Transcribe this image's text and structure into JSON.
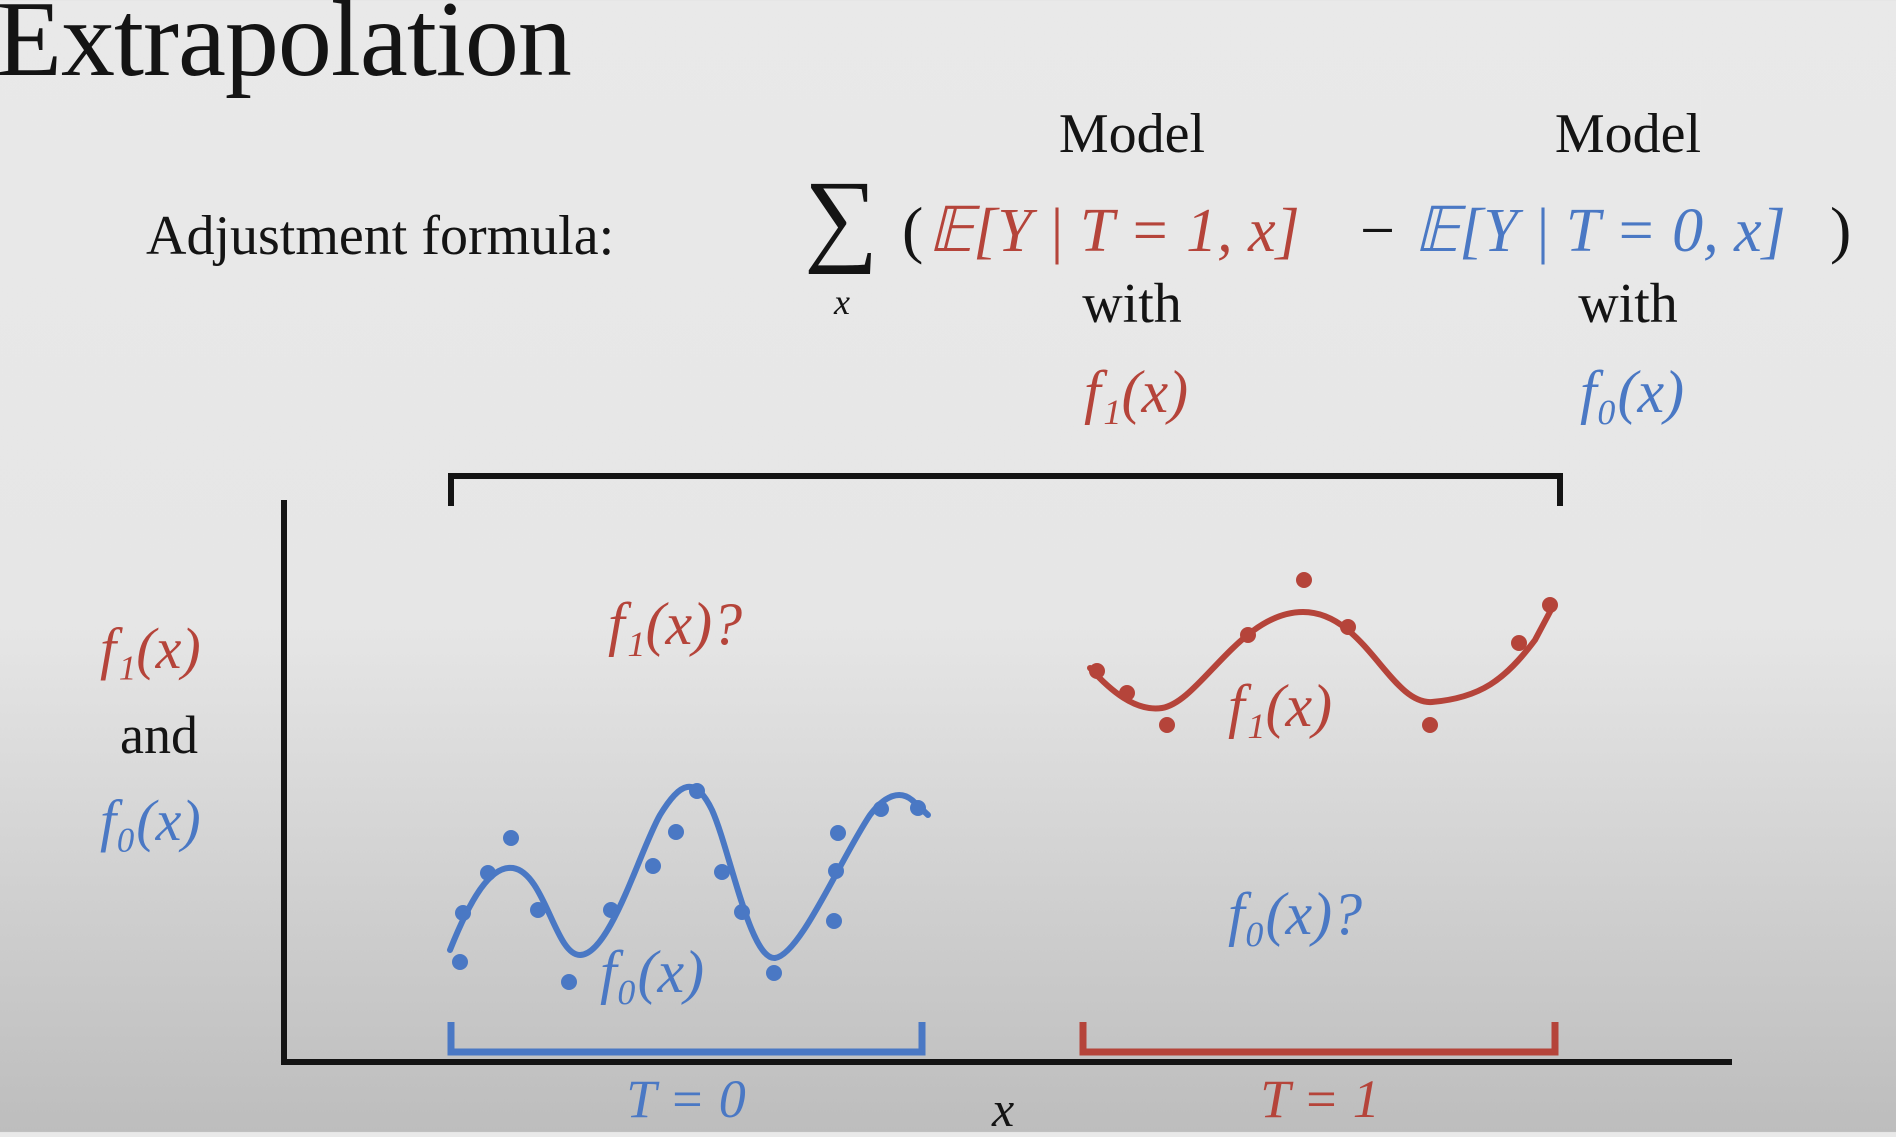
{
  "title": "Extrapolation",
  "formula": {
    "label": "Adjustment formula:",
    "sum_symbol": "∑",
    "sum_index": "x",
    "open_paren": "(",
    "close_paren": ")",
    "term1": "𝔼[Y | T = 1, x]",
    "minus": "−",
    "term0": "𝔼[Y | T = 0, x]",
    "model_word": "Model",
    "with_word": "with",
    "f1": "f₁(x)",
    "f0": "f₀(x)"
  },
  "plot": {
    "ylabel_top": "f₁(x)",
    "ylabel_mid": "and",
    "ylabel_bottom": "f₀(x)",
    "xlabel": "x",
    "f1_question": "f₁(x)?",
    "f0_question": "f₀(x)?",
    "f1_curve_label": "f₁(x)",
    "f0_curve_label": "f₀(x)",
    "group0_label": "T = 0",
    "group1_label": "T = 1"
  },
  "colors": {
    "treated_red": "#b5443a",
    "control_blue": "#4a78c4",
    "ink": "#141414"
  }
}
